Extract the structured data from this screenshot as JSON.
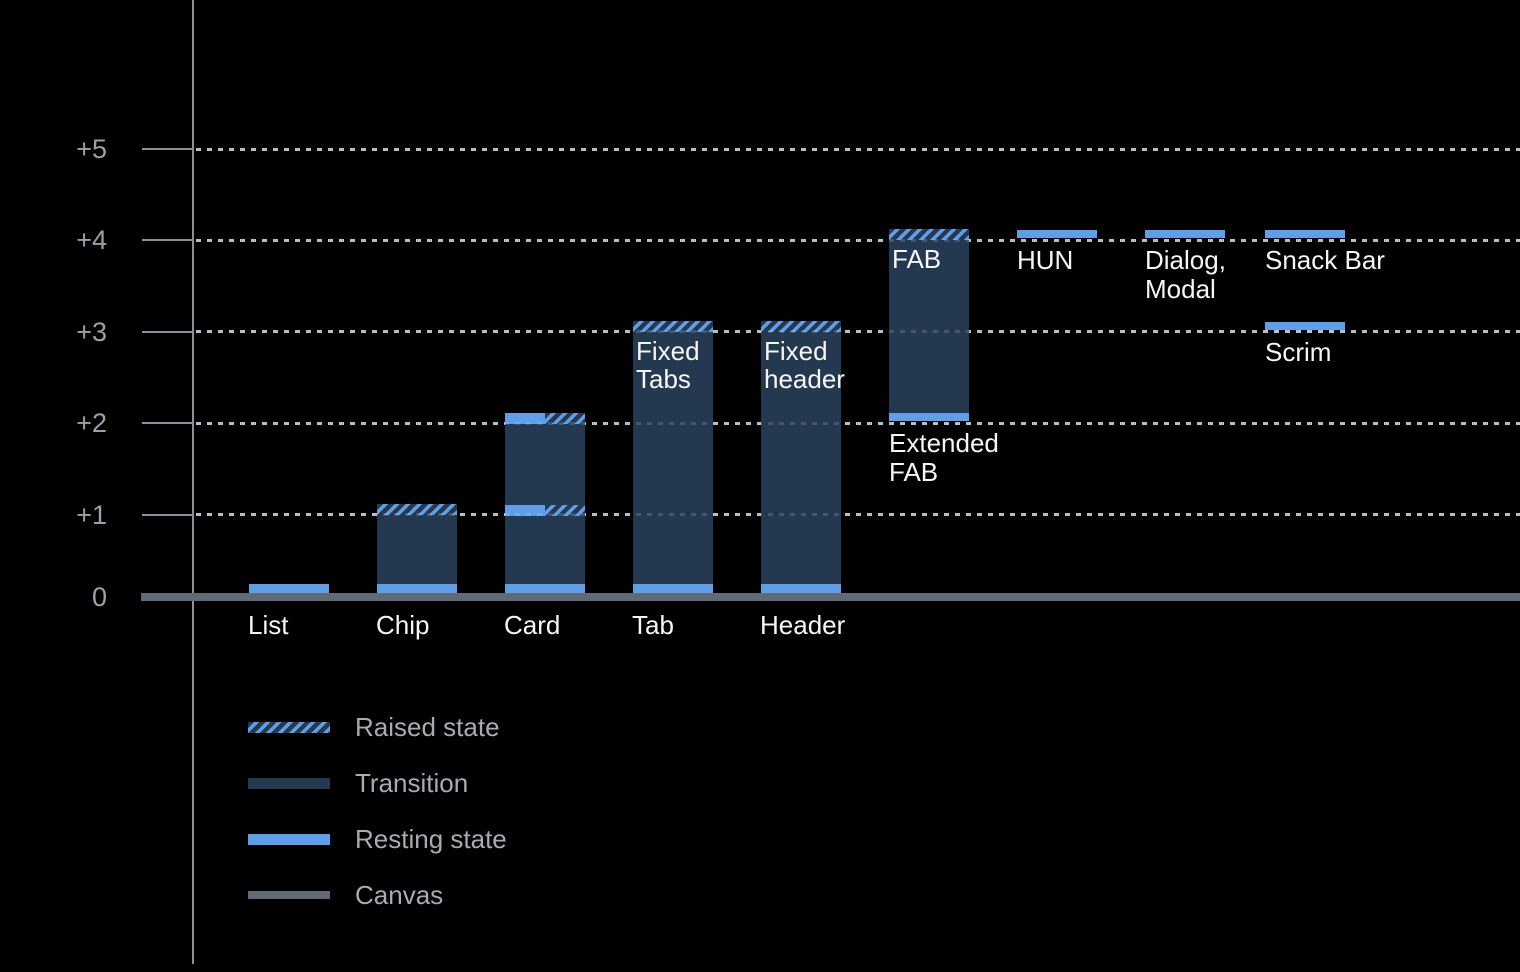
{
  "colors": {
    "background": "#000000",
    "resting_blue": "#5F9EE8",
    "transition_navy": "#243850",
    "canvas_gray": "#606A74",
    "axis_gray": "#8A9199",
    "gridline_gray": "#AEB3B8",
    "tick_label_gray": "#9BA1A7",
    "legend_text_gray": "#A7ACB2",
    "label_white": "#F5F6F7"
  },
  "chart_data": {
    "type": "bar",
    "title": "",
    "y_axis": {
      "tick_labels": [
        "+5",
        "+4",
        "+3",
        "+2",
        "+1",
        "0"
      ],
      "tick_values": [
        5,
        4,
        3,
        2,
        1,
        0
      ],
      "ylim": [
        0,
        5.5
      ],
      "grid": "dotted horizontal lines at +1 through +5; solid canvas baseline at 0"
    },
    "legend": {
      "position": "bottom-left",
      "items": [
        {
          "kind": "raised",
          "label": "Raised state"
        },
        {
          "kind": "transition",
          "label": "Transition"
        },
        {
          "kind": "resting",
          "label": "Resting state"
        },
        {
          "kind": "canvas",
          "label": "Canvas"
        }
      ]
    },
    "components": [
      {
        "key": "list",
        "slot": 0,
        "axis_label": "List",
        "elevation_bottom": 0,
        "elevation_top": 0.1,
        "segments": [
          {
            "kind": "resting-ground"
          }
        ]
      },
      {
        "key": "chip",
        "slot": 1,
        "axis_label": "Chip",
        "elevation_bottom": 0,
        "elevation_top": 1.1,
        "segments": [
          {
            "kind": "transition",
            "from": 0,
            "to": 1
          },
          {
            "kind": "raised",
            "at": 1
          },
          {
            "kind": "resting-ground"
          }
        ]
      },
      {
        "key": "card",
        "slot": 2,
        "axis_label": "Card",
        "elevation_bottom": 0,
        "elevation_top": 2.1,
        "segments": [
          {
            "kind": "transition",
            "from": 0,
            "to": 2
          },
          {
            "kind": "split",
            "at": 1
          },
          {
            "kind": "split",
            "at": 2
          },
          {
            "kind": "resting-ground"
          }
        ]
      },
      {
        "key": "tab",
        "slot": 3,
        "axis_label": "Tab",
        "bar_label": [
          "Fixed",
          "Tabs"
        ],
        "elevation_bottom": 0,
        "elevation_top": 3.1,
        "segments": [
          {
            "kind": "transition",
            "from": 0,
            "to": 3
          },
          {
            "kind": "raised",
            "at": 3
          },
          {
            "kind": "resting-ground"
          }
        ]
      },
      {
        "key": "header",
        "slot": 4,
        "axis_label": "Header",
        "bar_label": [
          "Fixed",
          "header"
        ],
        "elevation_bottom": 0,
        "elevation_top": 3.1,
        "segments": [
          {
            "kind": "transition",
            "from": 0,
            "to": 3
          },
          {
            "kind": "raised",
            "at": 3
          },
          {
            "kind": "resting-ground"
          }
        ]
      },
      {
        "key": "fab",
        "slot": 5,
        "bar_label": [
          "FAB"
        ],
        "below_label": [
          "Extended",
          "FAB"
        ],
        "elevation_bottom": 2,
        "elevation_top": 4.1,
        "segments": [
          {
            "kind": "transition",
            "from": 2,
            "to": 4
          },
          {
            "kind": "raised",
            "at": 4
          },
          {
            "kind": "resting-bottom",
            "at": 2
          }
        ]
      },
      {
        "key": "hun",
        "slot": 6,
        "below_label": [
          "HUN"
        ],
        "elevation_bottom": 4,
        "elevation_top": 4.1,
        "segments": [
          {
            "kind": "resting-float",
            "at": 4
          }
        ]
      },
      {
        "key": "dialog-modal",
        "slot": 7,
        "below_label": [
          "Dialog,",
          "Modal"
        ],
        "elevation_bottom": 4,
        "elevation_top": 4.1,
        "segments": [
          {
            "kind": "resting-float",
            "at": 4
          }
        ]
      },
      {
        "key": "snack-bar",
        "slot": 8,
        "below_label": [
          "Snack Bar"
        ],
        "elevation_bottom": 4,
        "elevation_top": 4.1,
        "segments": [
          {
            "kind": "resting-float",
            "at": 4
          }
        ]
      },
      {
        "key": "scrim",
        "slot": 8,
        "below_label": [
          "Scrim"
        ],
        "elevation_bottom": 3,
        "elevation_top": 3.1,
        "segments": [
          {
            "kind": "resting-float",
            "at": 3
          }
        ]
      }
    ]
  }
}
